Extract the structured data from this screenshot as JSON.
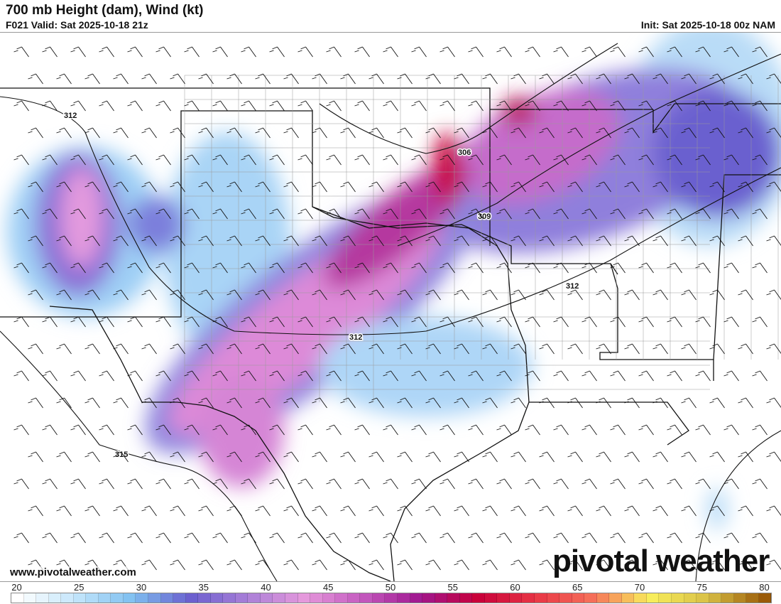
{
  "header": {
    "title": "700 mb Height (dam), Wind (kt)",
    "valid": "F021 Valid: Sat 2025-10-18 21z",
    "init": "Init: Sat 2025-10-18 00z NAM"
  },
  "contour_labels": [
    "312",
    "306",
    "309",
    "312",
    "312",
    "315"
  ],
  "footer": {
    "url": "www.pivotalweather.com",
    "logo": "pivotal weather"
  },
  "colorbar": {
    "unit": "kt",
    "min": 20,
    "max": 80,
    "labels": [
      "20",
      "25",
      "30",
      "35",
      "40",
      "45",
      "50",
      "55",
      "60",
      "65",
      "70",
      "75",
      "80"
    ],
    "anchor_colors": [
      "#ffffff",
      "#c5e6fb",
      "#7fc0f0",
      "#6a5fcf",
      "#a97fd8",
      "#e699dc",
      "#c45abf",
      "#a0178f",
      "#c8003a",
      "#e83545",
      "#f5705a",
      "#f9ef5c",
      "#d8c046",
      "#9a5a08"
    ]
  }
}
